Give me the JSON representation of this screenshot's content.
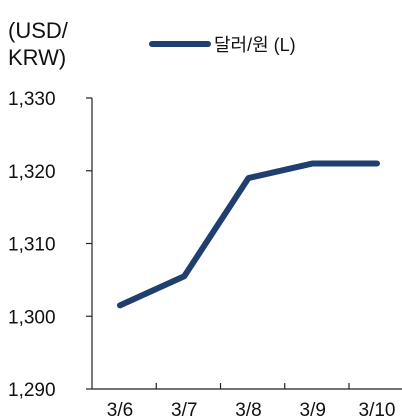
{
  "chart_data": {
    "type": "line",
    "title": "",
    "unit_label_lines": [
      "(USD/",
      "KRW)"
    ],
    "categories": [
      "3/6",
      "3/7",
      "3/8",
      "3/9",
      "3/10"
    ],
    "series": [
      {
        "name": "달러/원 (L)",
        "values": [
          1301.5,
          1305.5,
          1319,
          1321,
          1321
        ],
        "color": "#1f3f6e"
      }
    ],
    "ylim": [
      1290,
      1330
    ],
    "yticks": [
      1290,
      1300,
      1310,
      1320,
      1330
    ],
    "ytick_labels": [
      "1,290",
      "1,300",
      "1,310",
      "1,320",
      "1,330"
    ],
    "grid": false,
    "legend_position": "top"
  }
}
